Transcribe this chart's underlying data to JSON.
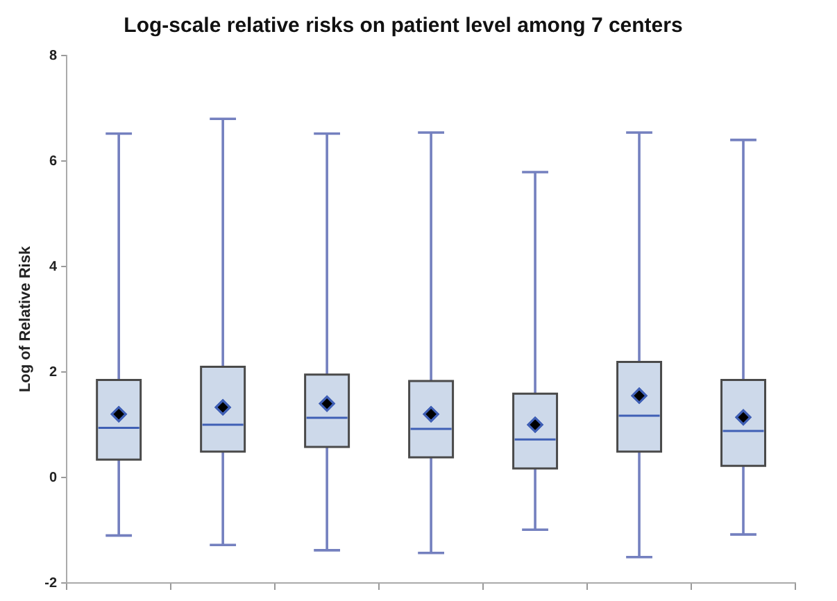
{
  "chart_data": {
    "type": "box",
    "title": "Log-scale relative risks on patient level among 7 centers",
    "ylabel": "Log of Relative Risk",
    "categories": [
      null,
      null,
      null,
      null,
      null,
      null,
      null
    ],
    "boxes": [
      {
        "low": -1.1,
        "q1": 0.34,
        "median": 0.94,
        "q3": 1.85,
        "high": 6.52,
        "mean": 1.2
      },
      {
        "low": -1.28,
        "q1": 0.49,
        "median": 1.0,
        "q3": 2.1,
        "high": 6.8,
        "mean": 1.33
      },
      {
        "low": -1.38,
        "q1": 0.58,
        "median": 1.13,
        "q3": 1.95,
        "high": 6.52,
        "mean": 1.4
      },
      {
        "low": -1.43,
        "q1": 0.38,
        "median": 0.92,
        "q3": 1.83,
        "high": 6.54,
        "mean": 1.2
      },
      {
        "low": -0.99,
        "q1": 0.17,
        "median": 0.72,
        "q3": 1.59,
        "high": 5.79,
        "mean": 1.0
      },
      {
        "low": -1.51,
        "q1": 0.49,
        "median": 1.17,
        "q3": 2.19,
        "high": 6.54,
        "mean": 1.55
      },
      {
        "low": -1.08,
        "q1": 0.22,
        "median": 0.88,
        "q3": 1.85,
        "high": 6.4,
        "mean": 1.14
      }
    ],
    "color": "#cdd9ea",
    "ylim": [
      -2,
      8
    ],
    "yticks": [
      -2,
      0,
      2,
      4,
      6,
      8
    ],
    "grid": false,
    "tick_labels": "y",
    "marker": "diamond"
  }
}
